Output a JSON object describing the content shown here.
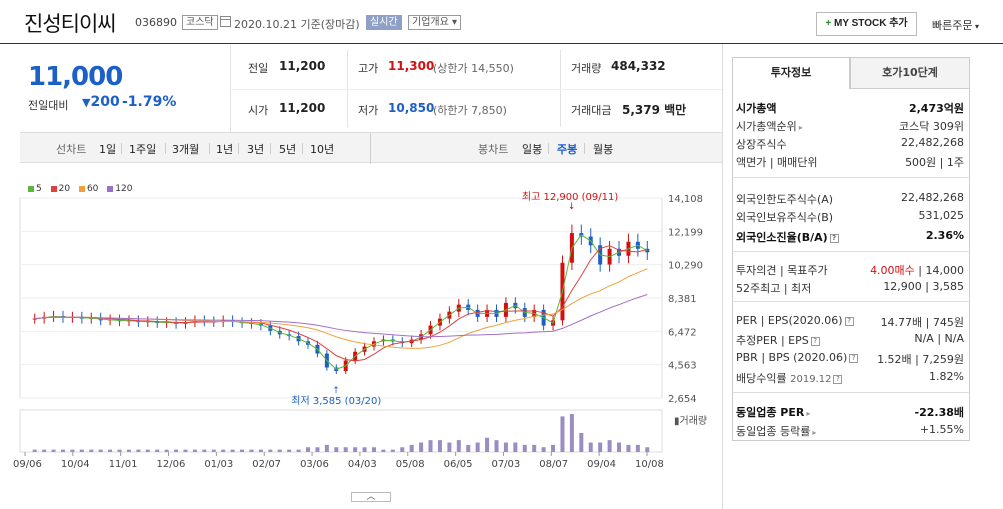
{
  "header": {
    "company_name": "진성티이씨",
    "code": "036890",
    "market": "코스닥",
    "base_date": "2020.10.21 기준(장마감)",
    "realtime_label": "실시간",
    "overview_label": "기업개요",
    "mystock_label": "MY STOCK 추가",
    "quick_order_label": "빠른주문"
  },
  "price": {
    "current": "11,000",
    "change_label": "전일대비",
    "change_value": "200",
    "change_pct": "-1.79%"
  },
  "quote": {
    "prev_close_label": "전일",
    "prev_close": "11,200",
    "open_label": "시가",
    "open": "11,200",
    "high_label": "고가",
    "high": "11,300",
    "upper_limit": "(상한가 14,550)",
    "low_label": "저가",
    "low": "10,850",
    "lower_limit": "(하한가 7,850)",
    "volume_label": "거래량",
    "volume": "484,332",
    "amount_label": "거래대금",
    "amount": "5,379 백만"
  },
  "period_bar": {
    "line_label": "선차트",
    "periods": [
      "1일",
      "1주일",
      "3개월",
      "1년",
      "3년",
      "5년",
      "10년"
    ],
    "candle_label": "봉차트",
    "candle_types": [
      "일봉",
      "주봉",
      "월봉"
    ],
    "selected_candle": "주봉"
  },
  "chart_data": {
    "type": "candlestick",
    "legend": [
      {
        "name": "5",
        "color": "#5db83a"
      },
      {
        "name": "20",
        "color": "#e04040"
      },
      {
        "name": "60",
        "color": "#f0a040"
      },
      {
        "name": "120",
        "color": "#a070c8"
      }
    ],
    "y_ticks": [
      "14,108",
      "12,199",
      "10,290",
      "8,381",
      "6,472",
      "4,563",
      "2,654"
    ],
    "ylim": [
      2654,
      14108
    ],
    "x_ticks": [
      "09/06",
      "10/04",
      "11/01",
      "12/06",
      "01/03",
      "02/07",
      "03/06",
      "04/03",
      "05/08",
      "06/05",
      "07/03",
      "08/07",
      "09/04",
      "10/08"
    ],
    "high_annotation": "최고 12,900 (09/11)",
    "low_annotation": "최저 3,585 (03/20)",
    "volume_label": "거래량",
    "up_color": "#d40f0f",
    "down_color": "#1b5fc7",
    "volume_color": "#9b8cc4",
    "closes": [
      7200,
      7300,
      7350,
      7250,
      7300,
      7200,
      7250,
      7100,
      7150,
      7050,
      7100,
      7000,
      7050,
      6950,
      7000,
      6900,
      7000,
      7100,
      7050,
      7000,
      7100,
      7000,
      6950,
      6900,
      6800,
      6500,
      6300,
      6200,
      5900,
      5700,
      5200,
      4400,
      4200,
      4800,
      5300,
      5600,
      5900,
      6000,
      5900,
      5800,
      6000,
      6300,
      6800,
      7200,
      7600,
      8000,
      7700,
      7300,
      7700,
      7300,
      8100,
      7800,
      7300,
      7700,
      6800,
      7100,
      10400,
      12100,
      11900,
      11400,
      10300,
      11200,
      10800,
      11600,
      11200,
      11000
    ],
    "volumes": [
      1,
      1,
      1,
      1,
      1,
      1,
      1,
      1,
      1,
      1,
      1,
      1,
      1,
      1,
      1,
      1,
      1,
      1,
      1,
      1,
      1,
      1,
      1,
      1,
      1,
      1,
      1,
      1,
      1,
      2,
      2,
      3,
      2,
      2,
      2,
      2,
      2,
      1,
      1,
      2,
      3,
      4,
      5,
      5,
      4,
      5,
      3,
      4,
      6,
      5,
      4,
      4,
      3,
      3,
      2,
      3,
      15,
      16,
      8,
      4,
      4,
      5,
      4,
      3,
      3,
      2
    ]
  },
  "right_panel": {
    "tab_invest": "투자정보",
    "tab_quote10": "호가10단계",
    "market_cap_label": "시가총액",
    "market_cap": "2,473억원",
    "market_cap_rank_label": "시가총액순위",
    "market_cap_rank": "코스닥 309위",
    "shares_label": "상장주식수",
    "shares": "22,482,268",
    "par_label": "액면가 | 매매단위",
    "par": "500원 | 1주",
    "foreign_limit_label": "외국인한도주식수(A)",
    "foreign_limit": "22,482,268",
    "foreign_hold_label": "외국인보유주식수(B)",
    "foreign_hold": "531,025",
    "foreign_rate_label": "외국인소진율(B/A)",
    "foreign_rate": "2.36%",
    "opinion_label": "투자의견 | 목표주가",
    "opinion": "4.00매수",
    "target": "| 14,000",
    "w52_label": "52주최고 | 최저",
    "w52": "12,900 | 3,585",
    "per_eps_label": "PER | EPS(2020.06)",
    "per_eps": "14.77배 | 745원",
    "est_per_label": "추정PER | EPS",
    "est_per": "N/A | N/A",
    "pbr_bps_label": "PBR | BPS (2020.06)",
    "pbr_bps": "1.52배 | 7,259원",
    "div_label": "배당수익률",
    "div_date": "2019.12",
    "div": "1.82%",
    "industry_per_label": "동일업종 PER",
    "industry_per": "-22.38배",
    "industry_chg_label": "동일업종 등락률",
    "industry_chg": "+1.55%"
  }
}
